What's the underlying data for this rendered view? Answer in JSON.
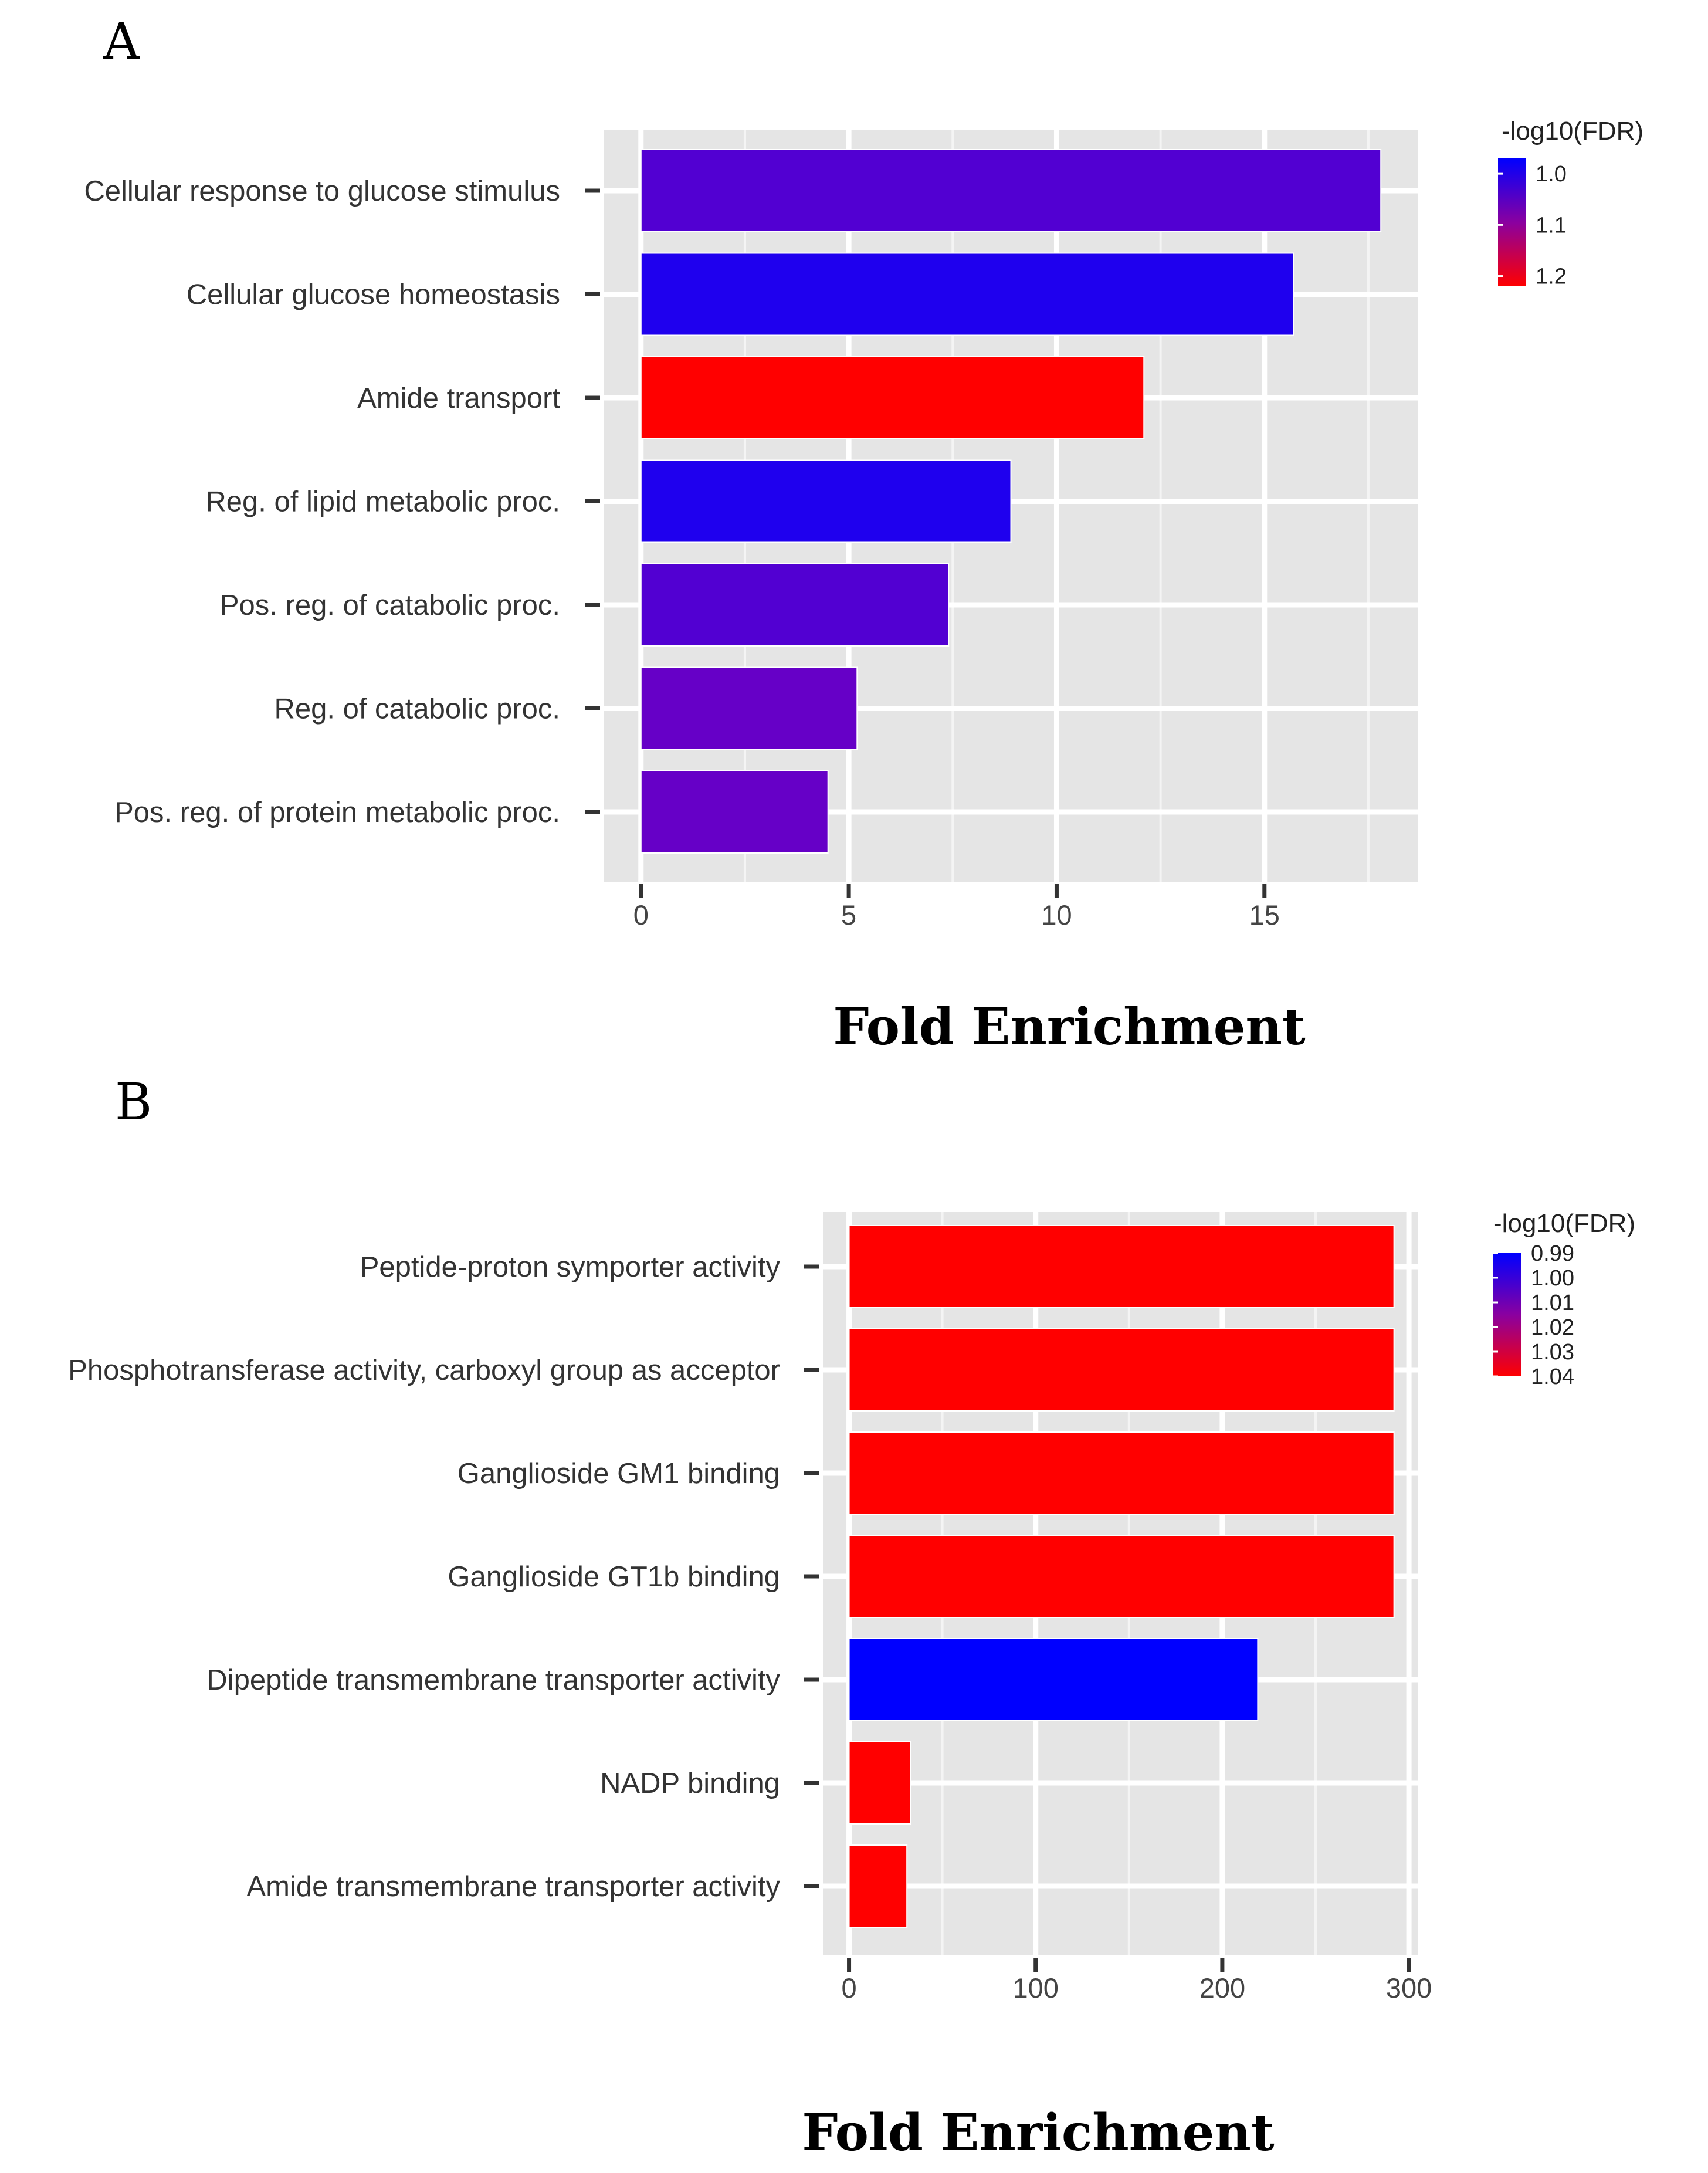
{
  "chart_data": [
    {
      "panel": "A",
      "type": "bar",
      "orientation": "horizontal",
      "categories": [
        "Cellular response to glucose stimulus",
        "Cellular glucose homeostasis",
        "Amide transport",
        "Reg. of lipid metabolic proc.",
        "Pos. reg. of catabolic proc.",
        "Reg. of catabolic proc.",
        "Pos. reg. of protein metabolic proc."
      ],
      "values": [
        17.8,
        15.7,
        12.1,
        8.9,
        7.4,
        5.2,
        4.5
      ],
      "color_values": [
        1.05,
        1.0,
        1.22,
        1.0,
        1.05,
        1.07,
        1.07
      ],
      "xlabel": "Fold Enrichment",
      "ylabel": "",
      "xlim": [
        -0.9,
        18.7
      ],
      "xticks": [
        0,
        5,
        10,
        15
      ],
      "xtick_labels": [
        "0",
        "5",
        "10",
        "15"
      ],
      "grid": true,
      "legend": {
        "title": "-log10(FDR)",
        "placement": "right",
        "ticks": [
          1.0,
          1.1,
          1.2
        ],
        "tick_labels": [
          "1.0",
          "1.1",
          "1.2"
        ],
        "range": [
          0.97,
          1.22
        ],
        "low_color": "#0000ff",
        "high_color": "#ff0000"
      }
    },
    {
      "panel": "B",
      "type": "bar",
      "orientation": "horizontal",
      "categories": [
        "Peptide-proton symporter activity",
        "Phosphotransferase activity, carboxyl group as acceptor",
        "Ganglioside GM1 binding",
        "Ganglioside GT1b binding",
        "Dipeptide transmembrane transporter activity",
        "NADP binding",
        "Amide transmembrane transporter activity"
      ],
      "values": [
        292,
        292,
        292,
        292,
        219,
        33,
        31
      ],
      "color_values": [
        1.04,
        1.04,
        1.04,
        1.04,
        0.99,
        1.04,
        1.04
      ],
      "xlabel": "Fold Enrichment",
      "ylabel": "",
      "xlim": [
        -14,
        305
      ],
      "xticks": [
        0,
        100,
        200,
        300
      ],
      "xtick_labels": [
        "0",
        "100",
        "200",
        "300"
      ],
      "grid": true,
      "legend": {
        "title": "-log10(FDR)",
        "placement": "right",
        "ticks": [
          0.99,
          1.0,
          1.01,
          1.02,
          1.03,
          1.04
        ],
        "tick_labels": [
          "0.99",
          "1.00",
          "1.01",
          "1.02",
          "1.03",
          "1.04"
        ],
        "range": [
          0.99,
          1.04
        ],
        "low_color": "#0000ff",
        "high_color": "#ff0000"
      }
    }
  ]
}
